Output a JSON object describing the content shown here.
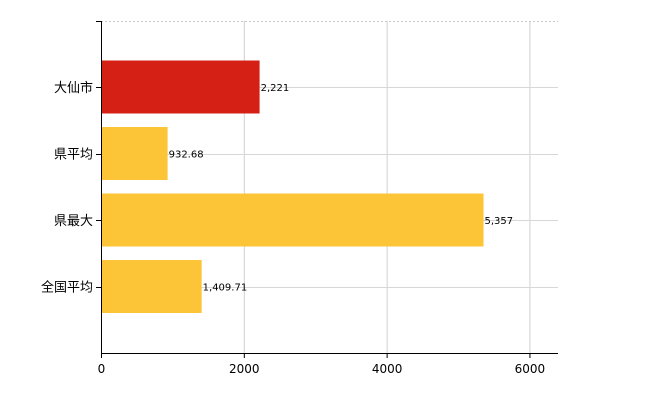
{
  "chart_data": {
    "type": "bar",
    "orientation": "horizontal",
    "categories": [
      "大仙市",
      "県平均",
      "県最大",
      "全国平均"
    ],
    "values": [
      2221,
      932.68,
      5357,
      1409.71
    ],
    "value_labels": [
      "2,221",
      "932.68",
      "5,357",
      "1,409.71"
    ],
    "bar_colors": [
      "#d42015",
      "#fbc537",
      "#fbc537",
      "#fbc537"
    ],
    "xlim": [
      0,
      6400
    ],
    "xticks": [
      0,
      2000,
      4000,
      6000
    ],
    "xtick_labels": [
      "0",
      "2000",
      "4000",
      "6000"
    ],
    "grid": true,
    "legend": "none",
    "title": "",
    "xlabel": "",
    "ylabel": ""
  }
}
